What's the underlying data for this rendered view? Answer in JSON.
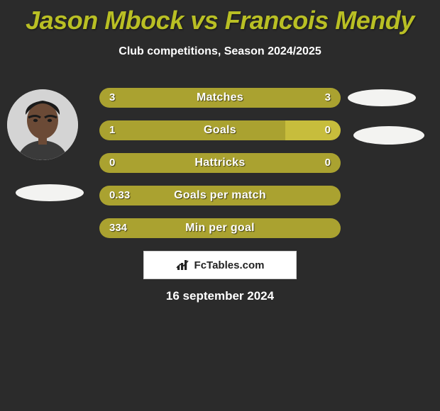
{
  "title": "Jason Mbock vs Francois Mendy",
  "title_color": "#b9bf24",
  "subtitle": "Club competitions, Season 2024/2025",
  "background_color": "#2b2b2b",
  "bar_left_color": "#aaa230",
  "bar_right_color": "#c7bd3c",
  "bar_neutral_color": "#aaa230",
  "text_color": "#ffffff",
  "bars": [
    {
      "label": "Matches",
      "left": "3",
      "right": "3",
      "left_pct": 50,
      "right_pct": 50
    },
    {
      "label": "Goals",
      "left": "1",
      "right": "0",
      "left_pct": 77,
      "right_pct": 23
    },
    {
      "label": "Hattricks",
      "left": "0",
      "right": "0",
      "left_pct": 50,
      "right_pct": 50
    },
    {
      "label": "Goals per match",
      "left": "0.33",
      "right": "",
      "left_pct": 100,
      "right_pct": 0
    },
    {
      "label": "Min per goal",
      "left": "334",
      "right": "",
      "left_pct": 100,
      "right_pct": 0
    }
  ],
  "footer_brand": "FcTables.com",
  "footer_date": "16 september 2024",
  "avatar_left_alt": "Jason Mbock",
  "avatar_right_alt": "Francois Mendy",
  "ellipse_color": "#f3f3f1"
}
